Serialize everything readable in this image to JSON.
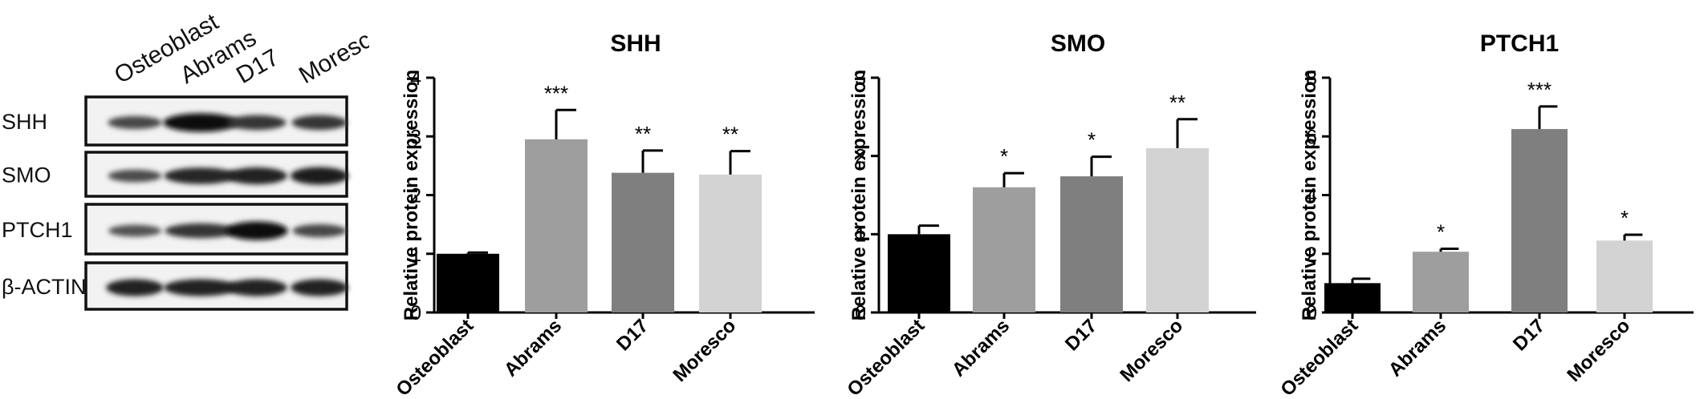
{
  "western_blot": {
    "lanes": [
      "Osteoblast",
      "Abrams",
      "D17",
      "Moresco"
    ],
    "rows": [
      {
        "label": "SHH",
        "band_intensity": [
          0.45,
          0.95,
          0.6,
          0.6
        ]
      },
      {
        "label": "SMO",
        "band_intensity": [
          0.4,
          0.75,
          0.8,
          0.85
        ]
      },
      {
        "label": "PTCH1",
        "band_intensity": [
          0.35,
          0.6,
          0.95,
          0.45
        ]
      },
      {
        "label": "β-ACTIN",
        "band_intensity": [
          0.8,
          0.8,
          0.8,
          0.8
        ]
      }
    ]
  },
  "chart_data": [
    {
      "type": "bar",
      "title": "SHH",
      "ylabel": "Relative protein expression",
      "xlabel": "",
      "categories": [
        "Osteoblast",
        "Abrams",
        "D17",
        "Moresco"
      ],
      "values": [
        1.0,
        2.95,
        2.38,
        2.35
      ],
      "errors": [
        0.02,
        0.5,
        0.38,
        0.4
      ],
      "significance": [
        "",
        "***",
        "**",
        "**"
      ],
      "ylim": [
        0,
        4
      ],
      "yticks": [
        0,
        1,
        2,
        3,
        4
      ],
      "bar_colors": [
        "#000000",
        "#9e9e9e",
        "#7f7f7f",
        "#d3d3d3"
      ]
    },
    {
      "type": "bar",
      "title": "SMO",
      "ylabel": "Relative protein expression",
      "xlabel": "",
      "categories": [
        "Osteoblast",
        "Abrams",
        "D17",
        "Moresco"
      ],
      "values": [
        1.0,
        1.6,
        1.74,
        2.1
      ],
      "errors": [
        0.11,
        0.18,
        0.25,
        0.37
      ],
      "significance": [
        "",
        "*",
        "*",
        "**"
      ],
      "ylim": [
        0,
        3
      ],
      "yticks": [
        0,
        1,
        2,
        3
      ],
      "bar_colors": [
        "#000000",
        "#9e9e9e",
        "#7f7f7f",
        "#d3d3d3"
      ]
    },
    {
      "type": "bar",
      "title": "PTCH1",
      "ylabel": "Relative protein expression",
      "xlabel": "",
      "categories": [
        "Osteoblast",
        "Abrams",
        "D17",
        "Moresco"
      ],
      "values": [
        1.0,
        2.07,
        6.25,
        2.45
      ],
      "errors": [
        0.15,
        0.1,
        0.77,
        0.2
      ],
      "significance": [
        "",
        "*",
        "***",
        "*"
      ],
      "ylim": [
        0,
        8
      ],
      "yticks": [
        0,
        2,
        4,
        6,
        8
      ],
      "bar_colors": [
        "#000000",
        "#9e9e9e",
        "#7f7f7f",
        "#d3d3d3"
      ]
    }
  ]
}
